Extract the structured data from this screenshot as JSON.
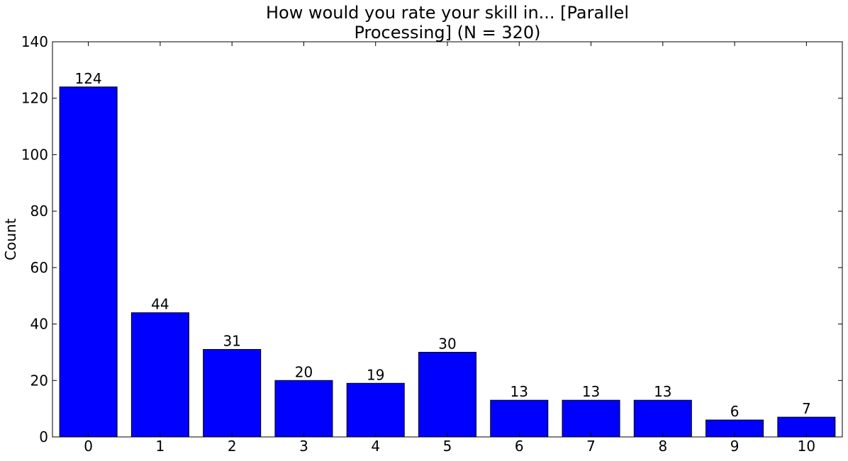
{
  "chart_data": {
    "type": "bar",
    "title_lines": [
      "How would you rate your skill in... [Parallel",
      "Processing] (N = 320)"
    ],
    "xlabel": "",
    "ylabel": "Count",
    "categories": [
      "0",
      "1",
      "2",
      "3",
      "4",
      "5",
      "6",
      "7",
      "8",
      "9",
      "10"
    ],
    "values": [
      124,
      44,
      31,
      20,
      19,
      30,
      13,
      13,
      13,
      6,
      7
    ],
    "data_labels": [
      "124",
      "44",
      "31",
      "20",
      "19",
      "30",
      "13",
      "13",
      "13",
      "6",
      "7"
    ],
    "ylim": [
      0,
      140
    ],
    "yticks": [
      0,
      20,
      40,
      60,
      80,
      100,
      120,
      140
    ],
    "grid": false,
    "legend": "none",
    "colors": {
      "bar_fill": "#0000ff",
      "bar_edge": "#000000",
      "axes": "#000000",
      "background": "#ffffff"
    }
  }
}
